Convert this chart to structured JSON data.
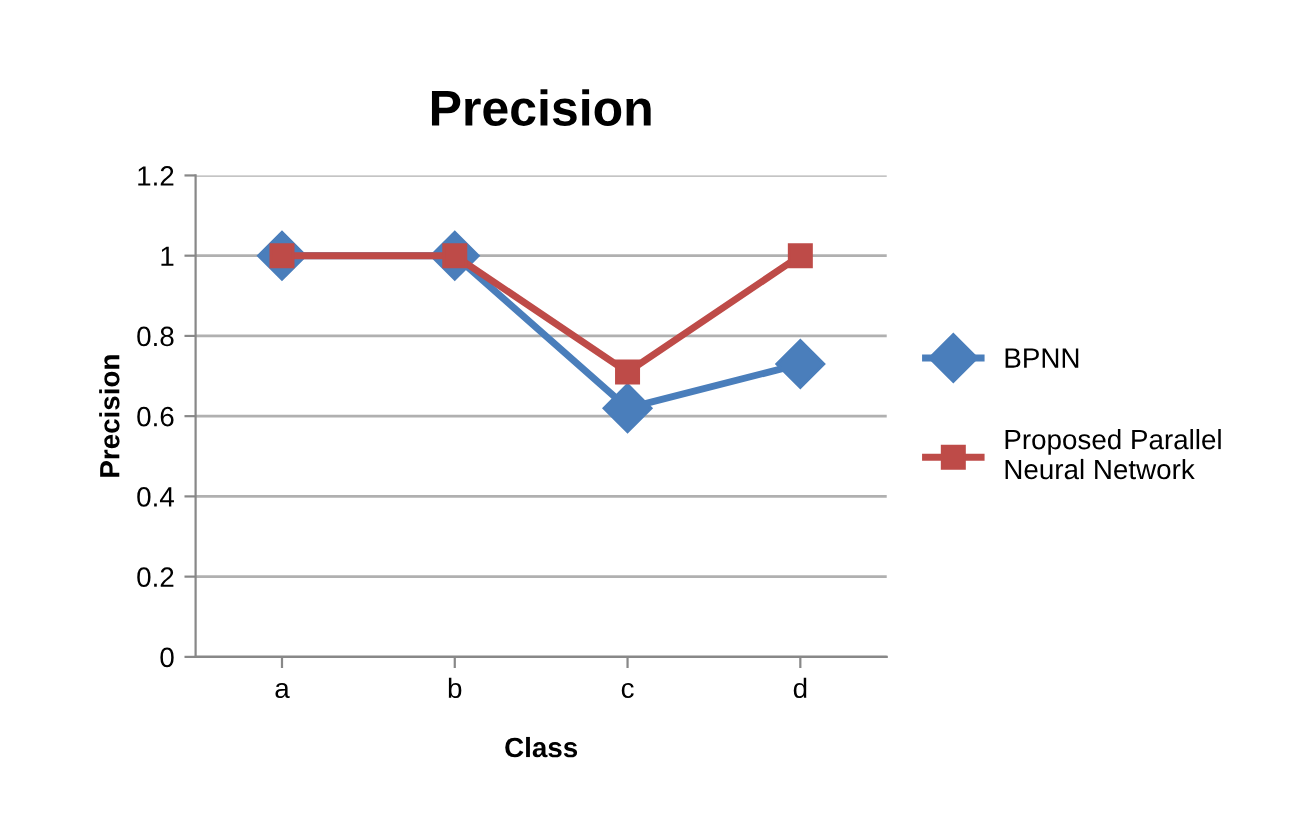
{
  "chart_data": {
    "type": "line",
    "title": "Precision",
    "xlabel": "Class",
    "ylabel": "Precision",
    "categories": [
      "a",
      "b",
      "c",
      "d"
    ],
    "series": [
      {
        "name": "BPNN",
        "color": "#4a7ebb",
        "marker": "diamond",
        "values": [
          1,
          1,
          0.62,
          0.73
        ]
      },
      {
        "name": "Proposed Parallel\nNeural Network",
        "color": "#be4b48",
        "marker": "square",
        "values": [
          1,
          1,
          0.71,
          1
        ]
      }
    ],
    "ylim": [
      0,
      1.2
    ],
    "yticks": [
      0,
      0.2,
      0.4,
      0.6,
      0.8,
      1,
      1.2
    ],
    "grid": "y",
    "legend": "right",
    "line_style": "solid"
  }
}
